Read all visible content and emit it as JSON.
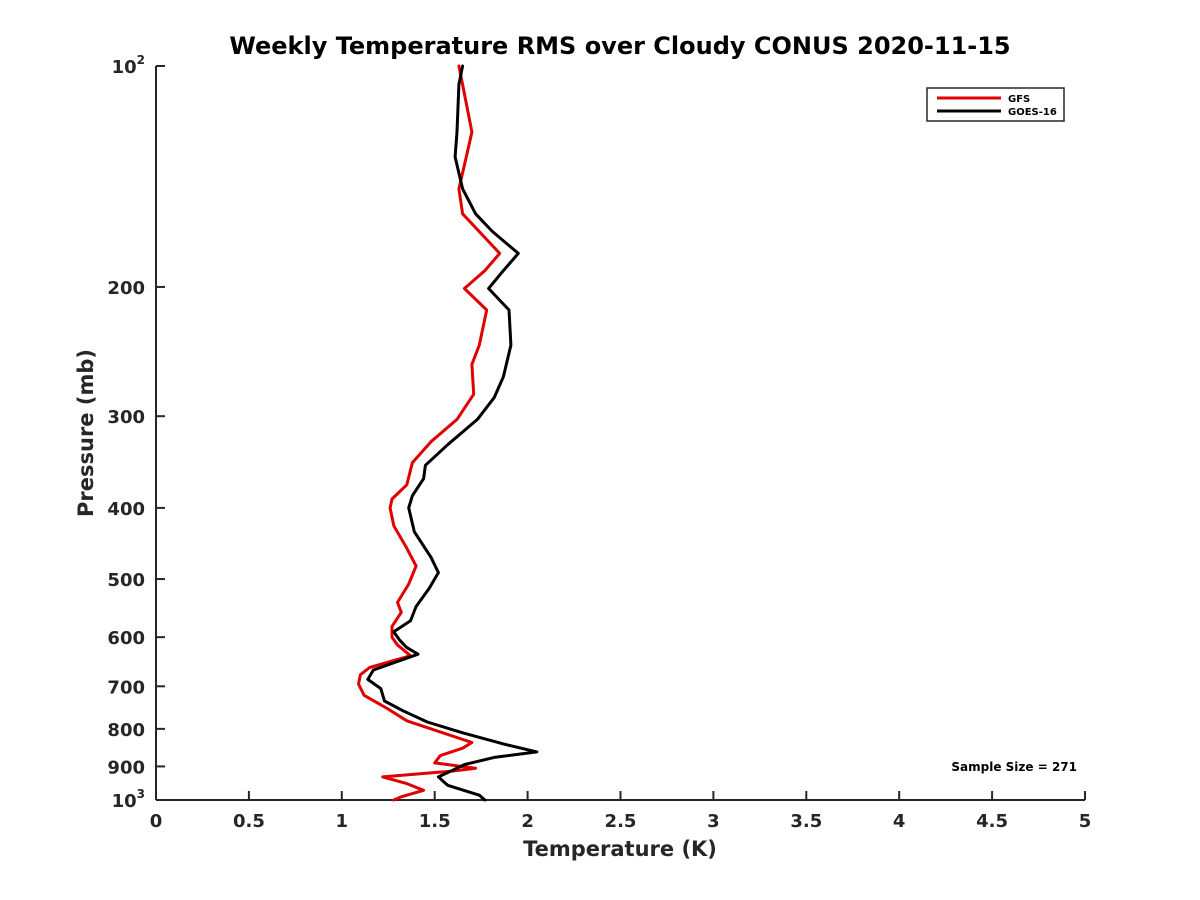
{
  "chart_data": {
    "type": "line",
    "title": "Weekly Temperature RMS over Cloudy CONUS 2020-11-15",
    "xlabel": "Temperature (K)",
    "ylabel": "Pressure (mb)",
    "xlim": [
      0,
      5
    ],
    "ylim": [
      100,
      1000
    ],
    "y_scale": "log",
    "y_reversed": true,
    "grid": false,
    "legend_position": "top-right",
    "x_ticks": [
      0,
      0.5,
      1,
      1.5,
      2,
      2.5,
      3,
      3.5,
      4,
      4.5,
      5
    ],
    "x_tick_labels": [
      "0",
      "0.5",
      "1",
      "1.5",
      "2",
      "2.5",
      "3",
      "3.5",
      "4",
      "4.5",
      "5"
    ],
    "y_ticks": [
      {
        "value": 100,
        "base": "10",
        "exp": "2"
      },
      {
        "value": 200,
        "label": "200"
      },
      {
        "value": 300,
        "label": "300"
      },
      {
        "value": 400,
        "label": "400"
      },
      {
        "value": 500,
        "label": "500"
      },
      {
        "value": 600,
        "label": "600"
      },
      {
        "value": 700,
        "label": "700"
      },
      {
        "value": 800,
        "label": "800"
      },
      {
        "value": 900,
        "label": "900"
      },
      {
        "value": 1000,
        "base": "10",
        "exp": "3"
      }
    ],
    "annotation": "Sample Size = 271",
    "series": [
      {
        "name": "GFS",
        "color": "#e00000",
        "points": [
          [
            1.63,
            100
          ],
          [
            1.65,
            106
          ],
          [
            1.7,
            123
          ],
          [
            1.67,
            133
          ],
          [
            1.63,
            147
          ],
          [
            1.65,
            159
          ],
          [
            1.85,
            180
          ],
          [
            1.77,
            190
          ],
          [
            1.66,
            201
          ],
          [
            1.78,
            215
          ],
          [
            1.74,
            240
          ],
          [
            1.7,
            255
          ],
          [
            1.71,
            280
          ],
          [
            1.62,
            303
          ],
          [
            1.48,
            325
          ],
          [
            1.38,
            347
          ],
          [
            1.35,
            372
          ],
          [
            1.27,
            389
          ],
          [
            1.26,
            400
          ],
          [
            1.28,
            423
          ],
          [
            1.35,
            454
          ],
          [
            1.4,
            480
          ],
          [
            1.36,
            508
          ],
          [
            1.3,
            538
          ],
          [
            1.32,
            555
          ],
          [
            1.27,
            580
          ],
          [
            1.27,
            600
          ],
          [
            1.3,
            615
          ],
          [
            1.37,
            636
          ],
          [
            1.15,
            660
          ],
          [
            1.1,
            675
          ],
          [
            1.09,
            695
          ],
          [
            1.12,
            720
          ],
          [
            1.25,
            752
          ],
          [
            1.35,
            780
          ],
          [
            1.7,
            835
          ],
          [
            1.65,
            850
          ],
          [
            1.53,
            870
          ],
          [
            1.5,
            890
          ],
          [
            1.72,
            905
          ],
          [
            1.6,
            913
          ],
          [
            1.22,
            930
          ],
          [
            1.35,
            950
          ],
          [
            1.44,
            970
          ],
          [
            1.32,
            990
          ],
          [
            1.28,
            1000
          ]
        ]
      },
      {
        "name": "GOES-16",
        "color": "#000000",
        "points": [
          [
            1.65,
            100
          ],
          [
            1.63,
            106
          ],
          [
            1.62,
            123
          ],
          [
            1.61,
            133
          ],
          [
            1.65,
            147
          ],
          [
            1.72,
            159
          ],
          [
            1.81,
            168
          ],
          [
            1.95,
            180
          ],
          [
            1.87,
            190
          ],
          [
            1.79,
            201
          ],
          [
            1.9,
            215
          ],
          [
            1.91,
            240
          ],
          [
            1.87,
            265
          ],
          [
            1.82,
            283
          ],
          [
            1.73,
            303
          ],
          [
            1.57,
            328
          ],
          [
            1.45,
            350
          ],
          [
            1.44,
            365
          ],
          [
            1.38,
            385
          ],
          [
            1.36,
            400
          ],
          [
            1.39,
            431
          ],
          [
            1.48,
            467
          ],
          [
            1.52,
            490
          ],
          [
            1.47,
            515
          ],
          [
            1.4,
            545
          ],
          [
            1.37,
            570
          ],
          [
            1.28,
            590
          ],
          [
            1.31,
            605
          ],
          [
            1.35,
            620
          ],
          [
            1.41,
            633
          ],
          [
            1.17,
            665
          ],
          [
            1.14,
            685
          ],
          [
            1.21,
            705
          ],
          [
            1.23,
            733
          ],
          [
            1.33,
            756
          ],
          [
            1.46,
            783
          ],
          [
            1.65,
            810
          ],
          [
            1.88,
            840
          ],
          [
            2.05,
            860
          ],
          [
            1.82,
            875
          ],
          [
            1.66,
            895
          ],
          [
            1.58,
            915
          ],
          [
            1.52,
            930
          ],
          [
            1.55,
            945
          ],
          [
            1.57,
            955
          ],
          [
            1.74,
            985
          ],
          [
            1.77,
            1000
          ]
        ]
      }
    ]
  }
}
